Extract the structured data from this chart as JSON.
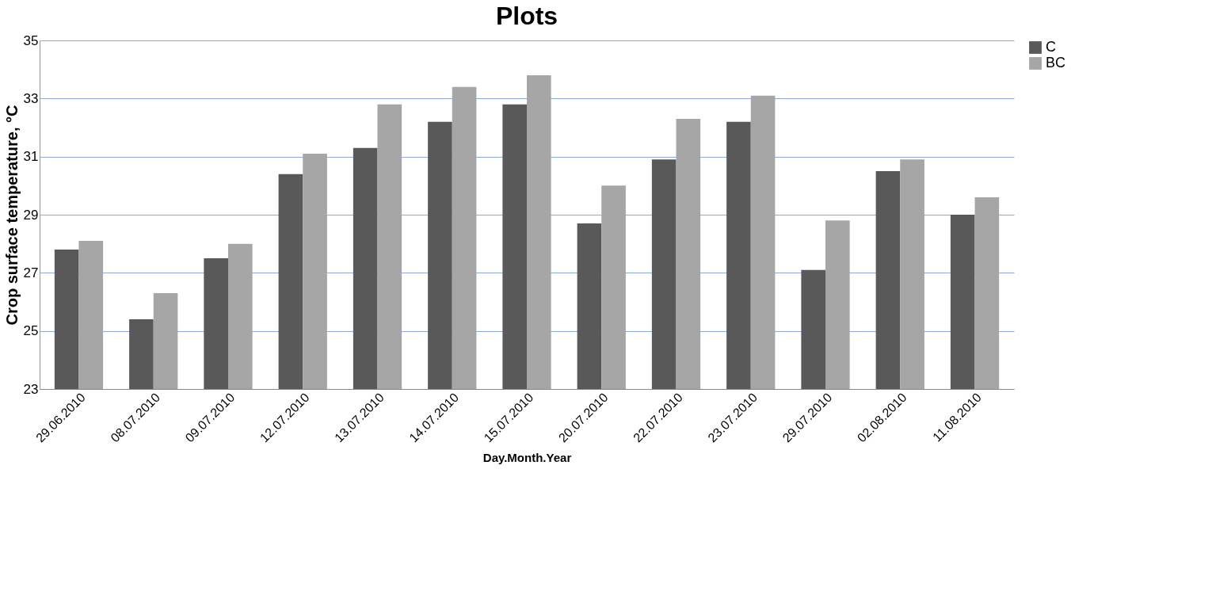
{
  "chart_data": {
    "type": "bar",
    "title": "Plots",
    "xlabel": "Day.Month.Year",
    "ylabel": "Crop  surface temperature, °C",
    "categories": [
      "29.06.2010",
      "08.07.2010",
      "09.07.2010",
      "12.07.2010",
      "13.07.2010",
      "14.07.2010",
      "15.07.2010",
      "20.07.2010",
      "22.07.2010",
      "23.07.2010",
      "29.07.2010",
      "02.08.2010",
      "11.08.2010"
    ],
    "series": [
      {
        "name": "C",
        "color": "#595959",
        "values": [
          27.8,
          25.4,
          27.5,
          30.4,
          31.3,
          32.2,
          32.8,
          28.7,
          30.9,
          32.2,
          27.1,
          30.5,
          29.0
        ]
      },
      {
        "name": "BC",
        "color": "#a6a6a6",
        "values": [
          28.1,
          26.3,
          28.0,
          31.1,
          32.8,
          33.4,
          33.8,
          30.0,
          32.3,
          33.1,
          28.8,
          30.9,
          29.6
        ]
      }
    ],
    "ylim": [
      23,
      35
    ],
    "yticks": [
      23,
      25,
      27,
      29,
      31,
      33,
      35
    ],
    "grid": "y",
    "legend": "right"
  }
}
